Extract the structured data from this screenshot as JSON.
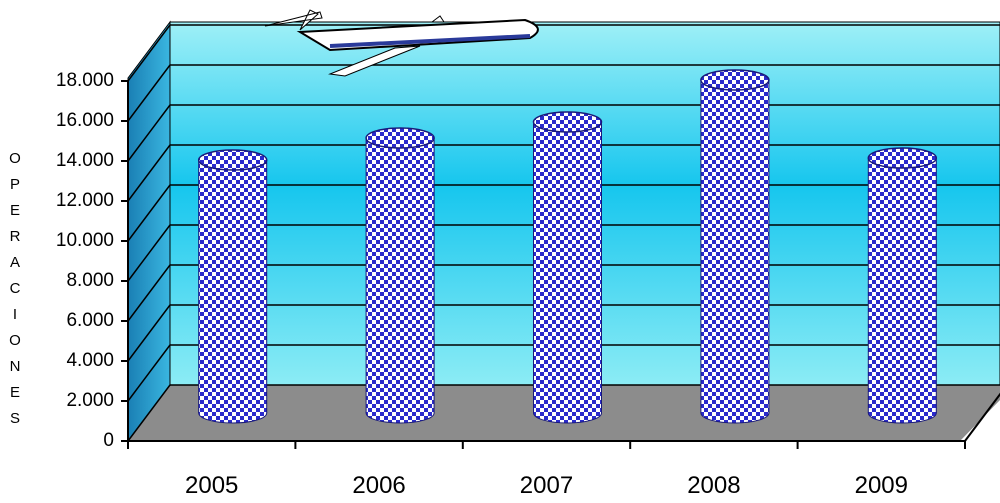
{
  "chart_data": {
    "type": "cylinder-bar",
    "y_axis_label": "OPERACIONES",
    "categories": [
      "2005",
      "2006",
      "2007",
      "2008",
      "2009"
    ],
    "values": [
      12650,
      13750,
      14550,
      16650,
      12750
    ],
    "color": "#2a2acc",
    "ylim": [
      0,
      18000
    ],
    "yticks": [
      0,
      {
        "value": 2000,
        "label": "2.000"
      },
      {
        "value": 4000,
        "label": "4.000"
      },
      {
        "value": 6000,
        "label": "6.000"
      },
      {
        "value": 8000,
        "label": "8.000"
      },
      {
        "value": 10000,
        "label": "10.000"
      },
      {
        "value": 12000,
        "label": "12.000"
      },
      {
        "value": 14000,
        "label": "14.000"
      },
      {
        "value": 16000,
        "label": "16.000"
      },
      {
        "value": 18000,
        "label": "18.000"
      }
    ],
    "grid": true
  }
}
